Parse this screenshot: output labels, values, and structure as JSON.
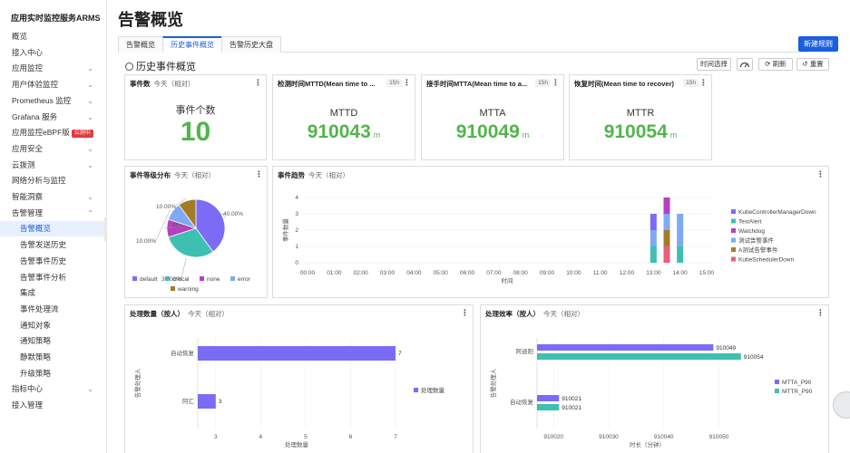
{
  "app": {
    "title": "应用实时监控服务ARMS"
  },
  "sidebar": {
    "items": [
      {
        "label": "概览",
        "chev": ""
      },
      {
        "label": "接入中心",
        "chev": ""
      },
      {
        "label": "应用监控",
        "chev": "⌄"
      },
      {
        "label": "用户体验监控",
        "chev": "⌄"
      },
      {
        "label": "Prometheus 监控",
        "chev": "⌄"
      },
      {
        "label": "Grafana 服务",
        "chev": "⌄"
      },
      {
        "label": "应用监控eBPF版",
        "chev": "⌄",
        "badge": "公测中"
      },
      {
        "label": "应用安全",
        "chev": "⌄"
      },
      {
        "label": "云拨测",
        "chev": "⌄"
      },
      {
        "label": "网络分析与监控",
        "chev": ""
      },
      {
        "label": "智能洞察",
        "chev": "⌄"
      },
      {
        "label": "告警管理",
        "chev": "⌃"
      },
      {
        "label": "告警概览",
        "chev": "",
        "sub": true,
        "active": true
      },
      {
        "label": "告警发送历史",
        "chev": "",
        "sub": true
      },
      {
        "label": "告警事件历史",
        "chev": "",
        "sub": true
      },
      {
        "label": "告警事件分析",
        "chev": "",
        "sub": true
      },
      {
        "label": "集成",
        "chev": "",
        "sub": true
      },
      {
        "label": "事件处理流",
        "chev": "",
        "sub": true
      },
      {
        "label": "通知对象",
        "chev": "",
        "sub": true
      },
      {
        "label": "通知策略",
        "chev": "",
        "sub": true
      },
      {
        "label": "静默策略",
        "chev": "",
        "sub": true
      },
      {
        "label": "升级策略",
        "chev": "",
        "sub": true
      },
      {
        "label": "指标中心",
        "chev": "⌄"
      },
      {
        "label": "接入管理",
        "chev": ""
      }
    ]
  },
  "header": {
    "page_title": "告警概览",
    "tabs": [
      {
        "label": "告警概览",
        "active": false
      },
      {
        "label": "历史事件概览",
        "active": true
      },
      {
        "label": "告警历史大盘",
        "active": false
      }
    ],
    "primary_button": "新建规则"
  },
  "section": {
    "title": "历史事件概览",
    "toolbar": {
      "time_select": "时间选择",
      "refresh": "刷新",
      "reset": "重置"
    }
  },
  "stats": [
    {
      "title": "事件数",
      "sub": "今天（相对）",
      "time": "",
      "label": "事件个数",
      "value": "10",
      "unit": ""
    },
    {
      "title": "检测时间MTTD(Mean time to ...",
      "sub": "",
      "time": "15h",
      "label": "MTTD",
      "value": "910043",
      "unit": "m"
    },
    {
      "title": "接手时间MTTA(Mean time to a...",
      "sub": "",
      "time": "15h",
      "label": "MTTA",
      "value": "910049",
      "unit": "m"
    },
    {
      "title": "恢复时间(Mean time to recover)",
      "sub": "",
      "time": "15h",
      "label": "MTTR",
      "value": "910054",
      "unit": "m"
    }
  ],
  "level_panel": {
    "title": "事件等级分布",
    "sub": "今天（相对）",
    "slice_labels": [
      "40.00%",
      "30.00%",
      "10.00%",
      "10.00%",
      "10.00%"
    ],
    "legend": [
      {
        "name": "default",
        "color": "#7b6cf6"
      },
      {
        "name": "critical",
        "color": "#3dbfb2"
      },
      {
        "name": "none",
        "color": "#b640c0"
      },
      {
        "name": "error",
        "color": "#7ea9f3"
      },
      {
        "name": "warning",
        "color": "#a57b2a"
      }
    ]
  },
  "trend_panel": {
    "title": "事件趋势",
    "sub": "今天（相对）",
    "ylabel": "事件数量",
    "xlabel": "时间",
    "legend": [
      {
        "name": "KubeControllerManagerDown",
        "color": "#7b6cf6"
      },
      {
        "name": "TestAlert",
        "color": "#3dbfb2"
      },
      {
        "name": "Watchdog",
        "color": "#b640c0"
      },
      {
        "name": "测试告警事件",
        "color": "#7ea9f3"
      },
      {
        "name": "A测试告警事件",
        "color": "#a57b2a"
      },
      {
        "name": "KubeSchedulerDown",
        "color": "#e8607a"
      }
    ]
  },
  "handle_panel": {
    "title": "处理数量（按人）",
    "sub": "今天（相对）",
    "ylabel": "告警处理人",
    "xlabel": "处理数量",
    "legend": "处理数量"
  },
  "eff_panel": {
    "title": "处理效率（按人）",
    "sub": "今天（相对）",
    "ylabel": "告警处理人",
    "xlabel": "时长（分钟）",
    "legend": [
      {
        "name": "MTTA_P90",
        "color": "#7b6cf6"
      },
      {
        "name": "MTTR_P90",
        "color": "#3dbfb2"
      }
    ]
  },
  "chart_data": [
    {
      "type": "pie",
      "title": "事件等级分布",
      "categories": [
        "default",
        "critical",
        "none",
        "error",
        "warning"
      ],
      "values": [
        40,
        30,
        10,
        10,
        10
      ],
      "colors": [
        "#7b6cf6",
        "#3dbfb2",
        "#b640c0",
        "#7ea9f3",
        "#a57b2a"
      ]
    },
    {
      "type": "bar",
      "title": "事件趋势",
      "xlabel": "时间",
      "ylabel": "事件数量",
      "ylim": [
        0,
        4
      ],
      "categories": [
        "00:00",
        "01:00",
        "02:00",
        "03:00",
        "04:00",
        "05:00",
        "06:00",
        "07:00",
        "08:00",
        "09:00",
        "10:00",
        "11:00",
        "12:00",
        "13:00",
        "14:00",
        "15:00"
      ],
      "stacks": [
        {
          "x": "13:00",
          "segments": [
            {
              "series": "TestAlert",
              "value": 1
            },
            {
              "series": "测试告警事件",
              "value": 1
            },
            {
              "series": "KubeControllerManagerDown",
              "value": 1
            }
          ]
        },
        {
          "x": "13:30",
          "segments": [
            {
              "series": "KubeSchedulerDown",
              "value": 1
            },
            {
              "series": "A测试告警事件",
              "value": 1
            },
            {
              "series": "测试告警事件",
              "value": 1
            },
            {
              "series": "Watchdog",
              "value": 1
            }
          ]
        },
        {
          "x": "14:00",
          "segments": [
            {
              "series": "TestAlert",
              "value": 1
            },
            {
              "series": "测试告警事件",
              "value": 2
            }
          ]
        }
      ]
    },
    {
      "type": "bar",
      "orientation": "horizontal",
      "title": "处理数量（按人）",
      "xlabel": "处理数量",
      "ylabel": "告警处理人",
      "xticks": [
        3,
        4,
        5,
        6,
        7
      ],
      "xlim": [
        2.6,
        7
      ],
      "categories": [
        "自动恢复",
        "阿汇"
      ],
      "values": [
        7,
        3
      ],
      "color": "#7b6cf6"
    },
    {
      "type": "bar",
      "orientation": "horizontal",
      "title": "处理效率（按人）",
      "xlabel": "时长（分钟）",
      "ylabel": "告警处理人",
      "xticks": [
        910020,
        910030,
        910040,
        910050
      ],
      "xlim": [
        910017,
        910057
      ],
      "categories": [
        "阿迪阳",
        "自动恢复"
      ],
      "series": [
        {
          "name": "MTTA_P90",
          "values": [
            910049,
            910021
          ]
        },
        {
          "name": "MTTR_P90",
          "values": [
            910054,
            910021
          ]
        }
      ]
    }
  ]
}
